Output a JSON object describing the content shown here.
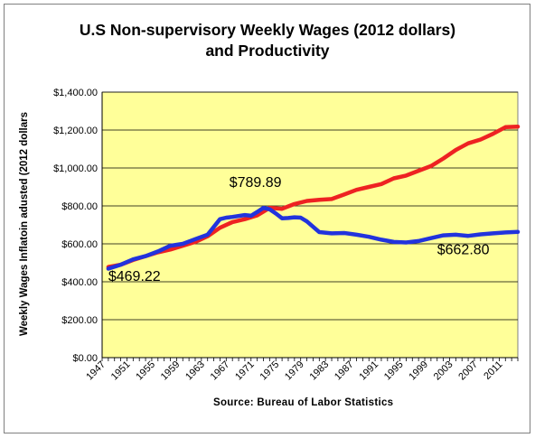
{
  "chart_data": {
    "type": "line",
    "title": "U.S Non-supervisory Weekly Wages (2012 dollars)",
    "title_line2": "and Productivity",
    "ylabel": "Weekly Wages Inflatoin adusted (2012 dollars",
    "xlabel": "",
    "source": "Source:  Bureau  of  Labor Statistics",
    "ylim": [
      0,
      1400
    ],
    "xlim": [
      1947,
      2014
    ],
    "grid": true,
    "plot_background": "#ffff99",
    "y_ticks": [
      0,
      200,
      400,
      600,
      800,
      1000,
      1200,
      1400
    ],
    "y_tick_labels": [
      "$0.00",
      "$200.00",
      "$400.00",
      "$600.00",
      "$800.00",
      "$1,000.00",
      "$1,200.00",
      "$1,400.00"
    ],
    "x_tick_labels": [
      "1947",
      "1951",
      "1955",
      "1959",
      "1963",
      "1967",
      "1971",
      "1975",
      "1979",
      "1983",
      "1987",
      "1991",
      "1995",
      "1999",
      "2003",
      "2007",
      "2011"
    ],
    "series": [
      {
        "color": "#ee2222",
        "x": [
          1948,
          1950,
          1952,
          1954,
          1956,
          1958,
          1960,
          1962,
          1964,
          1966,
          1968,
          1970,
          1972,
          1973,
          1974,
          1976,
          1978,
          1980,
          1982,
          1984,
          1986,
          1988,
          1990,
          1992,
          1994,
          1996,
          1998,
          2000,
          2002,
          2004,
          2006,
          2008,
          2010,
          2012,
          2014
        ],
        "values": [
          478,
          490,
          515,
          535,
          555,
          570,
          590,
          610,
          640,
          685,
          715,
          730,
          750,
          770,
          790,
          785,
          810,
          826,
          832,
          836,
          860,
          885,
          900,
          915,
          945,
          960,
          985,
          1010,
          1050,
          1095,
          1130,
          1150,
          1180,
          1215,
          1218
        ]
      },
      {
        "color": "#2233dd",
        "x": [
          1948,
          1950,
          1952,
          1954,
          1956,
          1958,
          1960,
          1962,
          1964,
          1966,
          1967,
          1968,
          1970,
          1971,
          1972,
          1973,
          1974,
          1975,
          1976,
          1977,
          1978,
          1979,
          1980,
          1981,
          1982,
          1984,
          1986,
          1988,
          1990,
          1992,
          1994,
          1996,
          1998,
          2000,
          2002,
          2004,
          2006,
          2008,
          2010,
          2012,
          2014
        ],
        "values": [
          469.22,
          490,
          518,
          535,
          560,
          590,
          600,
          625,
          648,
          730,
          738,
          742,
          752,
          748,
          768,
          790,
          782,
          760,
          735,
          736,
          740,
          738,
          718,
          690,
          662,
          655,
          657,
          648,
          637,
          622,
          610,
          607,
          615,
          630,
          645,
          648,
          642,
          650,
          655,
          660,
          662.8
        ]
      }
    ],
    "annotations": [
      "$789.89",
      "$469.22",
      "$662.80"
    ]
  }
}
